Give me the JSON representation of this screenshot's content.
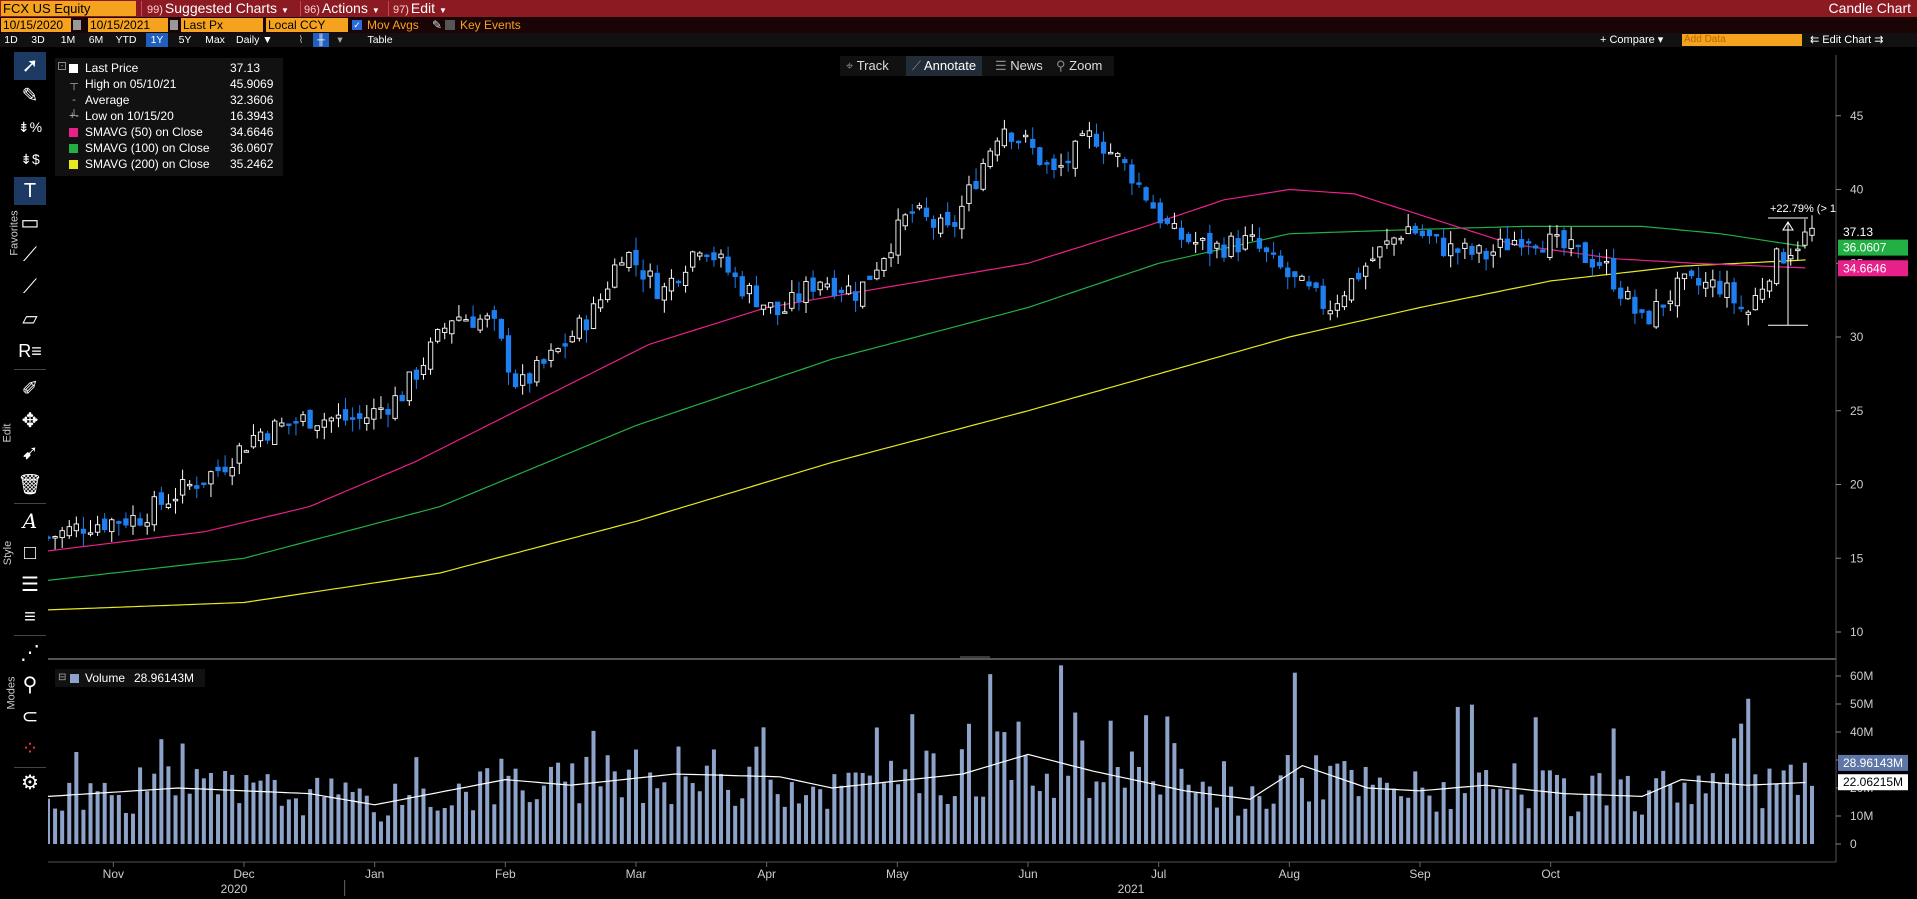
{
  "menubar": {
    "ticker": "FCX US Equity",
    "items": [
      {
        "num": "99)",
        "label": "Suggested Charts"
      },
      {
        "num": "96)",
        "label": "Actions"
      },
      {
        "num": "97)",
        "label": "Edit"
      }
    ],
    "title": "Candle Chart"
  },
  "options": {
    "start_date": "10/15/2020",
    "end_date": "10/15/2021",
    "field": "Last Px",
    "currency": "Local CCY",
    "mov_avgs_label": "Mov Avgs",
    "key_events_label": "Key Events"
  },
  "periods": [
    "1D",
    "3D",
    "1M",
    "6M",
    "YTD",
    "1Y",
    "5Y",
    "Max"
  ],
  "selected_period": "1Y",
  "frequency": "Daily",
  "table_label": "Table",
  "compare_label": "+ Compare",
  "add_data_placeholder": "Add Data",
  "edit_chart_label": "Edit Chart",
  "toolbar_sections": [
    "Favorites",
    "Edit",
    "Style",
    "Modes"
  ],
  "annotate_bar": {
    "track": "Track",
    "annotate": "Annotate",
    "news": "News",
    "zoom": "Zoom"
  },
  "legend": {
    "rows": [
      {
        "label": "Last Price",
        "value": "37.13",
        "color": "#ffffff"
      },
      {
        "label": "High on 05/10/21",
        "value": "45.9069",
        "icon": "high-icon"
      },
      {
        "label": "Average",
        "value": "32.3606",
        "icon": "average-icon"
      },
      {
        "label": "Low on 10/15/20",
        "value": "16.3943",
        "icon": "low-icon"
      },
      {
        "label": "SMAVG (50)  on Close",
        "value": "34.6646",
        "color": "#e8208a"
      },
      {
        "label": "SMAVG (100)  on Close",
        "value": "36.0607",
        "color": "#22b045"
      },
      {
        "label": "SMAVG (200)  on Close",
        "value": "35.2462",
        "color": "#e8e820"
      }
    ]
  },
  "volume_legend": {
    "label": "Volume",
    "value": "28.96143M"
  },
  "chart_data": {
    "type": "candlestick",
    "price_axis": {
      "ticks": [
        10,
        15,
        20,
        25,
        30,
        35,
        40,
        45
      ],
      "range": [
        8,
        48
      ]
    },
    "volume_axis": {
      "ticks": [
        0,
        10,
        20,
        30,
        40,
        50,
        60
      ],
      "tick_labels": [
        "0",
        "10M",
        "20M",
        "30M",
        "40M",
        "50M",
        "60M"
      ],
      "unit": "M",
      "range": [
        0,
        62
      ]
    },
    "x_axis": {
      "months": [
        "Nov",
        "Dec",
        "Jan",
        "Feb",
        "Mar",
        "Apr",
        "May",
        "Jun",
        "Jul",
        "Aug",
        "Sep",
        "Oct"
      ],
      "years": [
        "2020",
        "2021"
      ]
    },
    "price_path": [
      {
        "m": 0,
        "v": 16.4
      },
      {
        "m": 0.3,
        "v": 17.3
      },
      {
        "m": 0.7,
        "v": 17.8
      },
      {
        "m": 1.0,
        "v": 19.5
      },
      {
        "m": 1.3,
        "v": 21.0
      },
      {
        "m": 1.6,
        "v": 23.5
      },
      {
        "m": 2.0,
        "v": 24.5
      },
      {
        "m": 2.4,
        "v": 24.4
      },
      {
        "m": 2.7,
        "v": 26.0
      },
      {
        "m": 3.1,
        "v": 31.5
      },
      {
        "m": 3.4,
        "v": 31.0
      },
      {
        "m": 3.6,
        "v": 26.5
      },
      {
        "m": 3.9,
        "v": 29.0
      },
      {
        "m": 4.2,
        "v": 32.0
      },
      {
        "m": 4.4,
        "v": 36.0
      },
      {
        "m": 4.7,
        "v": 33.0
      },
      {
        "m": 5.0,
        "v": 36.5
      },
      {
        "m": 5.3,
        "v": 33.5
      },
      {
        "m": 5.6,
        "v": 31.5
      },
      {
        "m": 5.9,
        "v": 34.0
      },
      {
        "m": 6.2,
        "v": 33.0
      },
      {
        "m": 6.6,
        "v": 38.5
      },
      {
        "m": 6.9,
        "v": 37.0
      },
      {
        "m": 7.3,
        "v": 44.5
      },
      {
        "m": 7.5,
        "v": 43.0
      },
      {
        "m": 7.7,
        "v": 41.0
      },
      {
        "m": 8.0,
        "v": 43.8
      },
      {
        "m": 8.3,
        "v": 41.0
      },
      {
        "m": 8.6,
        "v": 37.0
      },
      {
        "m": 8.9,
        "v": 36.0
      },
      {
        "m": 9.2,
        "v": 36.5
      },
      {
        "m": 9.5,
        "v": 34.0
      },
      {
        "m": 9.8,
        "v": 32.0
      },
      {
        "m": 10.1,
        "v": 35.0
      },
      {
        "m": 10.4,
        "v": 37.5
      },
      {
        "m": 10.7,
        "v": 36.0
      },
      {
        "m": 11.0,
        "v": 35.5
      },
      {
        "m": 11.3,
        "v": 37.0
      },
      {
        "m": 11.6,
        "v": 36.0
      },
      {
        "m": 11.9,
        "v": 35.0
      },
      {
        "m": 12.2,
        "v": 31.0
      },
      {
        "m": 12.5,
        "v": 33.5
      },
      {
        "m": 12.8,
        "v": 33.5
      },
      {
        "m": 13.0,
        "v": 31.5
      },
      {
        "m": 13.2,
        "v": 35.0
      },
      {
        "m": 13.4,
        "v": 36.5
      },
      {
        "m": 13.5,
        "v": 37.13
      }
    ],
    "sma50_path": [
      {
        "m": 0,
        "v": 15.5
      },
      {
        "m": 1.2,
        "v": 16.8
      },
      {
        "m": 2.0,
        "v": 18.5
      },
      {
        "m": 2.8,
        "v": 21.5
      },
      {
        "m": 3.7,
        "v": 25.5
      },
      {
        "m": 4.6,
        "v": 29.5
      },
      {
        "m": 5.5,
        "v": 32.0
      },
      {
        "m": 6.5,
        "v": 33.5
      },
      {
        "m": 7.5,
        "v": 35.0
      },
      {
        "m": 8.4,
        "v": 37.5
      },
      {
        "m": 9.0,
        "v": 39.3
      },
      {
        "m": 9.5,
        "v": 40.0
      },
      {
        "m": 10.0,
        "v": 39.7
      },
      {
        "m": 10.6,
        "v": 38.0
      },
      {
        "m": 11.2,
        "v": 36.3
      },
      {
        "m": 12.0,
        "v": 35.3
      },
      {
        "m": 12.6,
        "v": 35.0
      },
      {
        "m": 13.5,
        "v": 34.6646
      }
    ],
    "sma100_path": [
      {
        "m": 0,
        "v": 13.5
      },
      {
        "m": 1.5,
        "v": 15.0
      },
      {
        "m": 3.0,
        "v": 18.5
      },
      {
        "m": 4.5,
        "v": 24.0
      },
      {
        "m": 6.0,
        "v": 28.5
      },
      {
        "m": 7.5,
        "v": 32.0
      },
      {
        "m": 8.5,
        "v": 35.0
      },
      {
        "m": 9.5,
        "v": 37.0
      },
      {
        "m": 10.5,
        "v": 37.3
      },
      {
        "m": 11.3,
        "v": 37.5
      },
      {
        "m": 12.2,
        "v": 37.5
      },
      {
        "m": 12.8,
        "v": 37.0
      },
      {
        "m": 13.5,
        "v": 36.0607
      }
    ],
    "sma200_path": [
      {
        "m": 0,
        "v": 11.5
      },
      {
        "m": 1.5,
        "v": 12.0
      },
      {
        "m": 3.0,
        "v": 14.0
      },
      {
        "m": 4.5,
        "v": 17.5
      },
      {
        "m": 6.0,
        "v": 21.5
      },
      {
        "m": 7.5,
        "v": 25.0
      },
      {
        "m": 8.5,
        "v": 27.5
      },
      {
        "m": 9.5,
        "v": 30.0
      },
      {
        "m": 10.5,
        "v": 32.0
      },
      {
        "m": 11.5,
        "v": 33.8
      },
      {
        "m": 12.5,
        "v": 34.8
      },
      {
        "m": 13.5,
        "v": 35.2462
      }
    ],
    "volume_avg_path": [
      {
        "m": 0,
        "v": 17
      },
      {
        "m": 1.0,
        "v": 20
      },
      {
        "m": 2.0,
        "v": 18
      },
      {
        "m": 2.5,
        "v": 14
      },
      {
        "m": 3.5,
        "v": 23
      },
      {
        "m": 4.0,
        "v": 21
      },
      {
        "m": 4.8,
        "v": 25
      },
      {
        "m": 5.6,
        "v": 24
      },
      {
        "m": 6.0,
        "v": 20
      },
      {
        "m": 7.0,
        "v": 25
      },
      {
        "m": 7.5,
        "v": 32
      },
      {
        "m": 8.0,
        "v": 26
      },
      {
        "m": 8.7,
        "v": 19
      },
      {
        "m": 9.2,
        "v": 16
      },
      {
        "m": 9.6,
        "v": 28
      },
      {
        "m": 10.1,
        "v": 20
      },
      {
        "m": 10.5,
        "v": 19
      },
      {
        "m": 11.0,
        "v": 21
      },
      {
        "m": 11.6,
        "v": 18
      },
      {
        "m": 12.2,
        "v": 17
      },
      {
        "m": 12.5,
        "v": 23
      },
      {
        "m": 13.0,
        "v": 21
      },
      {
        "m": 13.5,
        "v": 22.06
      }
    ],
    "last_price_label": "37.13",
    "sma100_label": "36.0607",
    "sma50_label": "34.6646",
    "volume_label": "28.96143M",
    "volume_avg_label": "22.06215M",
    "annotation": "+22.79% (> 1",
    "colors": {
      "up": "#ffffff",
      "down": "#1e7ff0",
      "sma50": "#e8208a",
      "sma100": "#22b045",
      "sma200": "#e8e820",
      "volume": "#8ea3c9",
      "volume_avg": "#ffffff"
    }
  }
}
